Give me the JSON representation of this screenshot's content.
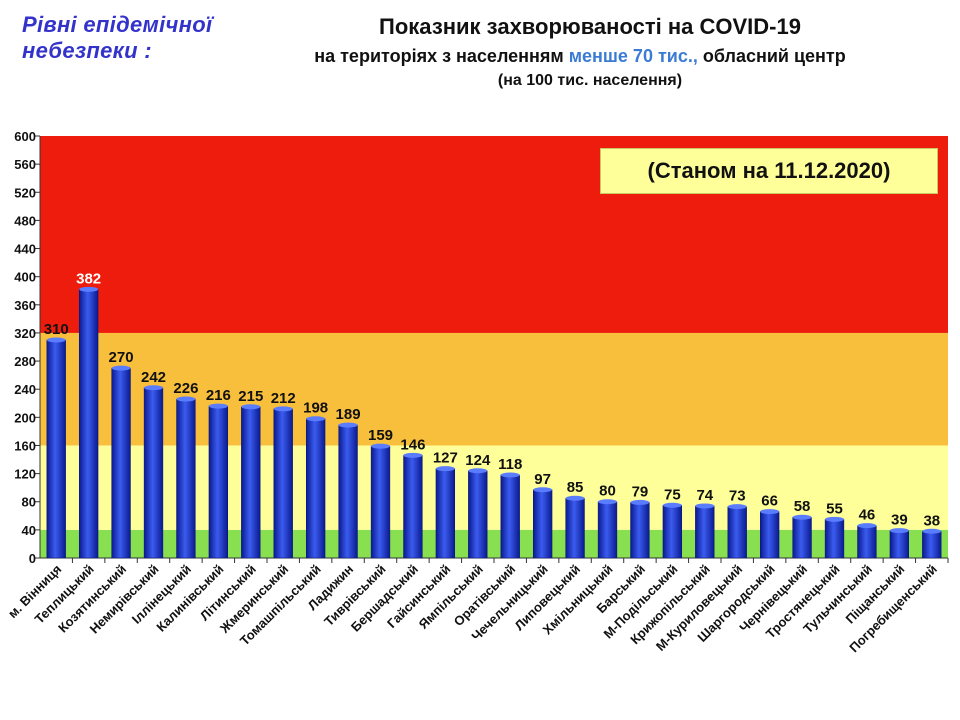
{
  "header": {
    "levels_title_line1": "Рівні епідемічної",
    "levels_title_line2": "небезпеки :",
    "title_line1": "Показник захворюваності на COVID-19",
    "title_line2_a": "на територіях з населенням ",
    "title_line2_highlight": "менше 70 тис.,",
    "title_line2_b": " обласний центр",
    "title_line3": "(на 100  тис. населення)",
    "date_note": "(Станом на 11.12.2020)"
  },
  "colors": {
    "zone_red": "#ee1c0c",
    "zone_orange": "#f8bf3c",
    "zone_yellow": "#ffff99",
    "zone_green": "#88e050",
    "bar": "#1a33cc",
    "highlight_text": "#3b7bd4"
  },
  "chart_data": {
    "type": "bar",
    "title": "Показник захворюваності на COVID-19",
    "ylabel": "",
    "xlabel": "",
    "ylim": [
      0,
      600
    ],
    "yticks": [
      0,
      40,
      80,
      120,
      160,
      200,
      240,
      280,
      320,
      360,
      400,
      440,
      480,
      520,
      560,
      600
    ],
    "grid": false,
    "zones": [
      {
        "level": "green",
        "from": 0,
        "to": 40
      },
      {
        "level": "yellow",
        "from": 40,
        "to": 160
      },
      {
        "level": "orange",
        "from": 160,
        "to": 320
      },
      {
        "level": "red",
        "from": 320,
        "to": 600
      }
    ],
    "categories": [
      "м. Вінниця",
      "Теплицький",
      "Козятинський",
      "Немирівський",
      "Іллінецький",
      "Калинівський",
      "Літинський",
      "Жмеринський",
      "Томашпільський",
      "Ладижин",
      "Тиврівський",
      "Бершадський",
      "Гайсинський",
      "Ямпільський",
      "Оратівський",
      "Чечельницький",
      "Липовецький",
      "Хмільницький",
      "Барський",
      "М-Подільський",
      "Крижопільський",
      "М-Куриловецький",
      "Шаргородський",
      "Чернівецький",
      "Тростянецький",
      "Тульчинський",
      "Піщанський",
      "Погребищенський"
    ],
    "values": [
      310,
      382,
      270,
      242,
      226,
      216,
      215,
      212,
      198,
      189,
      159,
      146,
      127,
      124,
      118,
      97,
      85,
      80,
      79,
      75,
      74,
      73,
      66,
      58,
      55,
      46,
      39,
      38
    ]
  }
}
